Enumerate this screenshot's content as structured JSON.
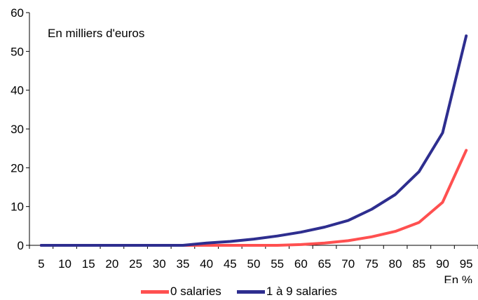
{
  "chart_data": {
    "type": "line",
    "annotation": "En milliers d'euros",
    "x": [
      5,
      10,
      15,
      20,
      25,
      30,
      35,
      40,
      45,
      50,
      55,
      60,
      65,
      70,
      75,
      80,
      85,
      90,
      95
    ],
    "x_tick_labels": [
      "5",
      "10",
      "15",
      "20",
      "25",
      "30",
      "35",
      "40",
      "45",
      "50",
      "55",
      "60",
      "65",
      "70",
      "75",
      "80",
      "85",
      "90",
      "95"
    ],
    "xlabel": "En %",
    "ylabel": "",
    "ylim": [
      0,
      60
    ],
    "y_ticks": [
      0,
      10,
      20,
      30,
      40,
      50,
      60
    ],
    "series": [
      {
        "name": "0 salaries",
        "color": "#ff5050",
        "values": [
          0,
          0,
          0,
          0,
          0,
          0,
          0,
          0,
          0,
          0,
          0,
          0.2,
          0.6,
          1.2,
          2.2,
          3.6,
          5.9,
          11.1,
          24.5
        ]
      },
      {
        "name": "1 à 9 salaries",
        "color": "#2e2e8f",
        "values": [
          0,
          0,
          0,
          0,
          0,
          0,
          0,
          0.6,
          1.0,
          1.6,
          2.4,
          3.4,
          4.7,
          6.4,
          9.3,
          13.1,
          19.0,
          29.0,
          54.0
        ]
      }
    ],
    "grid": false,
    "legend_position": "bottom"
  }
}
